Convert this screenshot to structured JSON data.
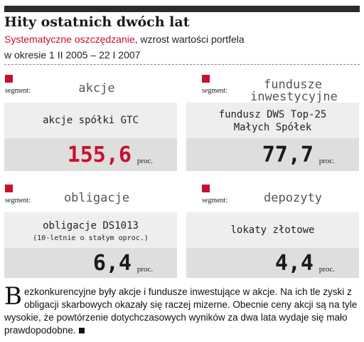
{
  "header": {
    "title": "Hity ostatnich dwóch lat",
    "subtitle_red": "Systematyczne oszczędzanie",
    "subtitle_rest": ", wzrost wartości portfela",
    "subtitle_line2": "w okresie 1 II 2005 – 22 I 2007"
  },
  "colors": {
    "accent": "#c8102e",
    "topbar": "#2b2b2b"
  },
  "segment_label": "segment:",
  "cards": [
    {
      "category": "akcje",
      "description": "akcje spółki GTC",
      "value": "155,6",
      "unit": "proc.",
      "value_color": "#c8102e"
    },
    {
      "category_line1": "fundusze",
      "category_line2": "inwestycyjne",
      "description_line1": "fundusz DWS Top-25",
      "description_line2": "Małych Spółek",
      "value": "77,7",
      "unit": "proc.",
      "value_color": "#1a1a1a"
    },
    {
      "category": "obligacje",
      "description_line1": "obligacje DS1013",
      "description_line2": "(10-letnie o stałym oproc.)",
      "value": "6,4",
      "unit": "proc.",
      "value_color": "#1a1a1a"
    },
    {
      "category": "depozyty",
      "description": "lokaty złotowe",
      "value": "4,4",
      "unit": "proc.",
      "value_color": "#1a1a1a"
    }
  ],
  "article": {
    "dropcap": "B",
    "text": "ezkonkurencyjne były akcje i fundusze inwestujące w akcje. Na ich tle zyski z obligacji skarbowych okazały się raczej mizerne. Obecnie ceny akcji są na tyle wysokie, że powtórzenie dotychczasowych wyników za dwa lata wydaje się mało prawdopodobne."
  }
}
